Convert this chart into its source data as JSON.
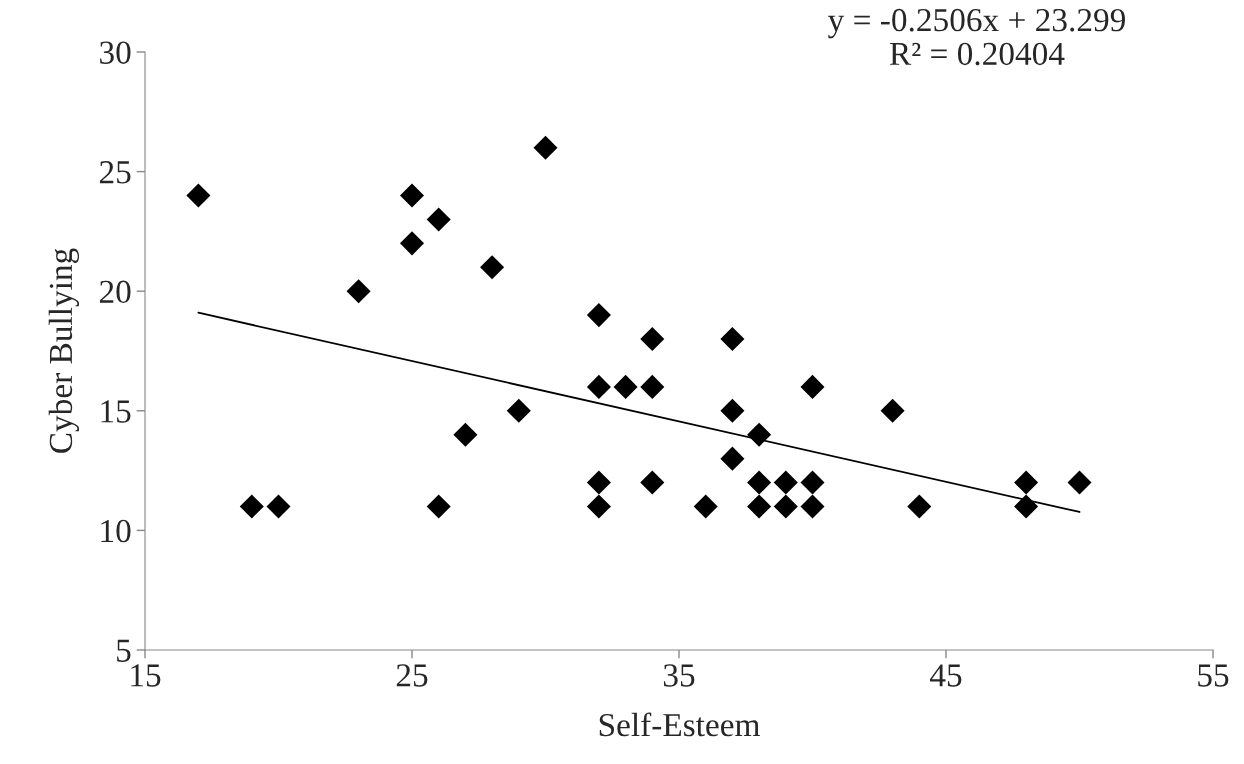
{
  "chart_data": {
    "type": "scatter",
    "xlabel": "Self-Esteem",
    "ylabel": "Cyber Bullying",
    "xlim": [
      15,
      55
    ],
    "xticks": [
      15,
      25,
      35,
      45,
      55
    ],
    "ylim": [
      5,
      30
    ],
    "yticks": [
      5,
      10,
      15,
      20,
      25,
      30
    ],
    "grid": false,
    "legend": false,
    "marker": "diamond",
    "series": [
      {
        "color": "#000000",
        "x": [
          17,
          19,
          20,
          23,
          25,
          25,
          26,
          26,
          27,
          28,
          29,
          30,
          32,
          32,
          32,
          32,
          33,
          34,
          34,
          34,
          36,
          37,
          37,
          37,
          38,
          38,
          38,
          39,
          39,
          40,
          40,
          40,
          43,
          44,
          48,
          48,
          50
        ],
        "values": [
          24,
          11,
          11,
          20,
          24,
          22,
          23,
          11,
          14,
          21,
          15,
          26,
          19,
          16,
          12,
          11,
          16,
          18,
          16,
          12,
          11,
          18,
          15,
          13,
          14,
          12,
          11,
          12,
          11,
          12,
          11,
          16,
          15,
          11,
          12,
          11,
          12
        ]
      },
      {
        "type": "line",
        "color": "#000000",
        "marker": "none",
        "line_style": "solid",
        "x": [
          17,
          50
        ],
        "values": [
          19.1,
          10.77
        ]
      }
    ],
    "annotations": [
      "y = -0.2506x + 23.299\nR² = 0.20404"
    ]
  }
}
